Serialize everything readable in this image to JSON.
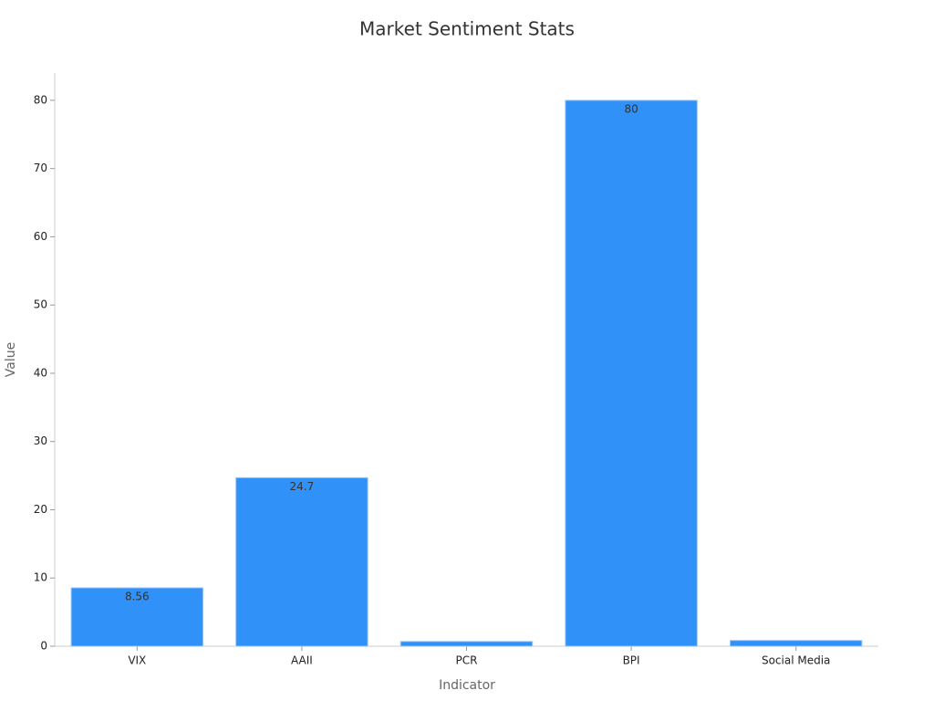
{
  "chart_data": {
    "type": "bar",
    "title": "Market Sentiment Stats",
    "x_label": "Indicator",
    "y_label": "Value",
    "categories": [
      "VIX",
      "AAII",
      "PCR",
      "BPI",
      "Social Media"
    ],
    "values": [
      8.56,
      24.7,
      0.7,
      80,
      0.85
    ],
    "color": "#3091f9",
    "ylim": [
      0,
      84
    ],
    "yticks": [
      0,
      10,
      20,
      30,
      40,
      50,
      60,
      70,
      80
    ],
    "grid": false
  }
}
